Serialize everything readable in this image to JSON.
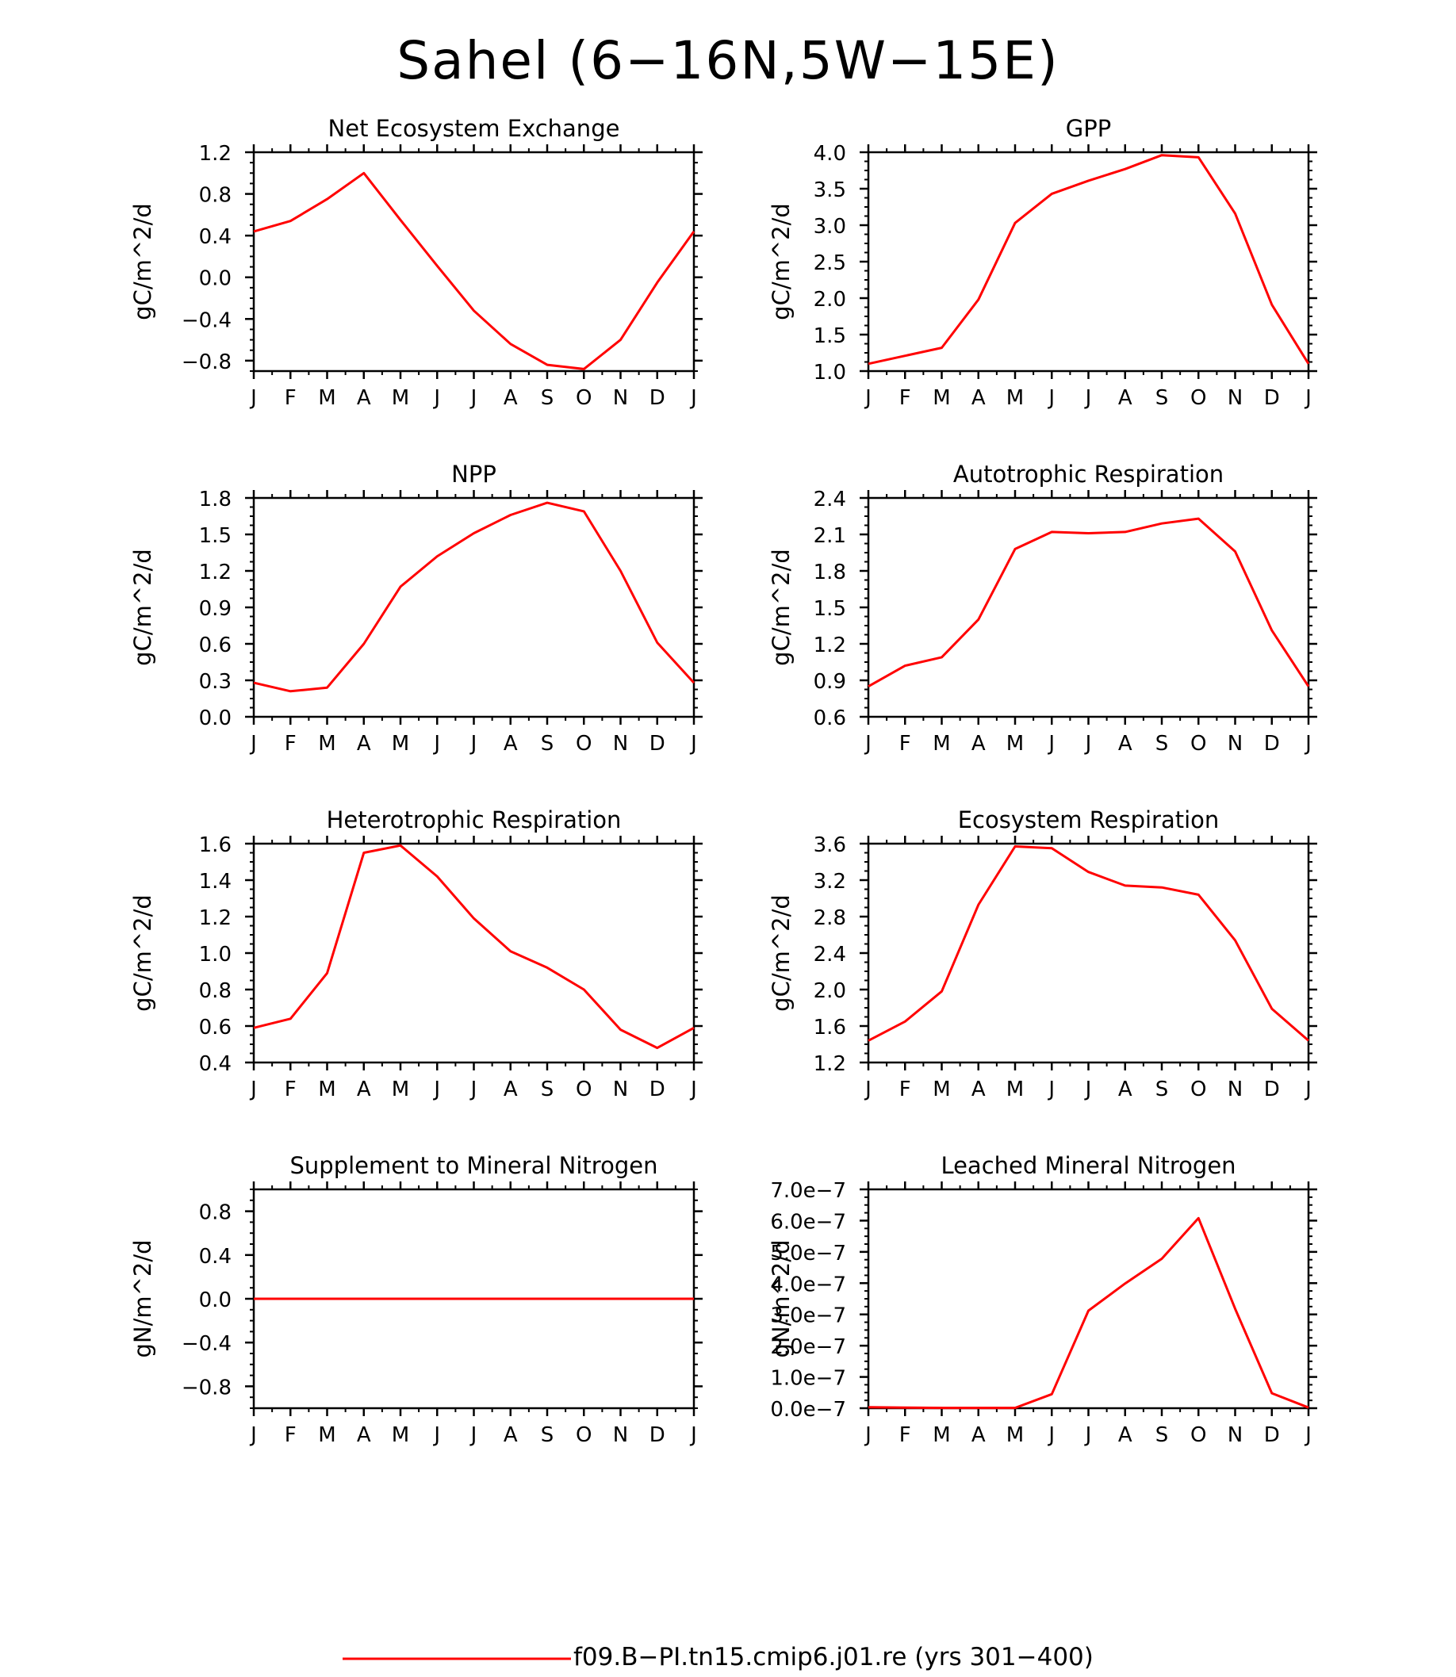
{
  "figure": {
    "title": "Sahel (6−16N,5W−15E)",
    "legend_label": "f09.B−PI.tn15.cmip6.j01.re (yrs 301−400)",
    "line_color": "#ff0000"
  },
  "chart_data": [
    {
      "type": "line",
      "title": "Net Ecosystem Exchange",
      "ylabel": "gC/m^2/d",
      "categories": [
        "J",
        "F",
        "M",
        "A",
        "M",
        "J",
        "J",
        "A",
        "S",
        "O",
        "N",
        "D",
        "J"
      ],
      "ylim": [
        -0.9,
        1.2
      ],
      "yticks": [
        1.2,
        0.8,
        0.4,
        0.0,
        -0.4,
        -0.8
      ],
      "ytick_labels": [
        "1.2",
        "0.8",
        "0.4",
        "0.0",
        "−0.4",
        "−0.8"
      ],
      "values": [
        0.44,
        0.54,
        0.75,
        1.0,
        0.55,
        0.11,
        -0.32,
        -0.64,
        -0.84,
        -0.88,
        -0.6,
        -0.05,
        0.44
      ]
    },
    {
      "type": "line",
      "title": "GPP",
      "ylabel": "gC/m^2/d",
      "categories": [
        "J",
        "F",
        "M",
        "A",
        "M",
        "J",
        "J",
        "A",
        "S",
        "O",
        "N",
        "D",
        "J"
      ],
      "ylim": [
        1.0,
        4.0
      ],
      "yticks": [
        4.0,
        3.5,
        3.0,
        2.5,
        2.0,
        1.5,
        1.0
      ],
      "ytick_labels": [
        "4.0",
        "3.5",
        "3.0",
        "2.5",
        "2.0",
        "1.5",
        "1.0"
      ],
      "values": [
        1.1,
        1.21,
        1.32,
        1.98,
        3.03,
        3.43,
        3.61,
        3.77,
        3.96,
        3.93,
        3.16,
        1.91,
        1.1
      ]
    },
    {
      "type": "line",
      "title": "NPP",
      "ylabel": "gC/m^2/d",
      "categories": [
        "J",
        "F",
        "M",
        "A",
        "M",
        "J",
        "J",
        "A",
        "S",
        "O",
        "N",
        "D",
        "J"
      ],
      "ylim": [
        0.0,
        1.8
      ],
      "yticks": [
        1.8,
        1.5,
        1.2,
        0.9,
        0.6,
        0.3,
        0.0
      ],
      "ytick_labels": [
        "1.8",
        "1.5",
        "1.2",
        "0.9",
        "0.6",
        "0.3",
        "0.0"
      ],
      "values": [
        0.28,
        0.21,
        0.24,
        0.6,
        1.07,
        1.32,
        1.51,
        1.66,
        1.76,
        1.69,
        1.2,
        0.61,
        0.28
      ]
    },
    {
      "type": "line",
      "title": "Autotrophic Respiration",
      "ylabel": "gC/m^2/d",
      "categories": [
        "J",
        "F",
        "M",
        "A",
        "M",
        "J",
        "J",
        "A",
        "S",
        "O",
        "N",
        "D",
        "J"
      ],
      "ylim": [
        0.6,
        2.4
      ],
      "yticks": [
        2.4,
        2.1,
        1.8,
        1.5,
        1.2,
        0.9,
        0.6
      ],
      "ytick_labels": [
        "2.4",
        "2.1",
        "1.8",
        "1.5",
        "1.2",
        "0.9",
        "0.6"
      ],
      "values": [
        0.85,
        1.02,
        1.09,
        1.4,
        1.98,
        2.12,
        2.11,
        2.12,
        2.19,
        2.23,
        1.96,
        1.31,
        0.85
      ]
    },
    {
      "type": "line",
      "title": "Heterotrophic Respiration",
      "ylabel": "gC/m^2/d",
      "categories": [
        "J",
        "F",
        "M",
        "A",
        "M",
        "J",
        "J",
        "A",
        "S",
        "O",
        "N",
        "D",
        "J"
      ],
      "ylim": [
        0.4,
        1.6
      ],
      "yticks": [
        1.6,
        1.4,
        1.2,
        1.0,
        0.8,
        0.6,
        0.4
      ],
      "ytick_labels": [
        "1.6",
        "1.4",
        "1.2",
        "1.0",
        "0.8",
        "0.6",
        "0.4"
      ],
      "values": [
        0.59,
        0.64,
        0.89,
        1.55,
        1.59,
        1.42,
        1.19,
        1.01,
        0.92,
        0.8,
        0.58,
        0.48,
        0.59
      ]
    },
    {
      "type": "line",
      "title": "Ecosystem Respiration",
      "ylabel": "gC/m^2/d",
      "categories": [
        "J",
        "F",
        "M",
        "A",
        "M",
        "J",
        "J",
        "A",
        "S",
        "O",
        "N",
        "D",
        "J"
      ],
      "ylim": [
        1.2,
        3.6
      ],
      "yticks": [
        3.6,
        3.2,
        2.8,
        2.4,
        2.0,
        1.6,
        1.2
      ],
      "ytick_labels": [
        "3.6",
        "3.2",
        "2.8",
        "2.4",
        "2.0",
        "1.6",
        "1.2"
      ],
      "values": [
        1.44,
        1.65,
        1.98,
        2.93,
        3.57,
        3.55,
        3.29,
        3.14,
        3.12,
        3.04,
        2.54,
        1.79,
        1.44
      ]
    },
    {
      "type": "line",
      "title": "Supplement to Mineral Nitrogen",
      "ylabel": "gN/m^2/d",
      "categories": [
        "J",
        "F",
        "M",
        "A",
        "M",
        "J",
        "J",
        "A",
        "S",
        "O",
        "N",
        "D",
        "J"
      ],
      "ylim": [
        -1.0,
        1.0
      ],
      "yticks": [
        0.8,
        0.4,
        0.0,
        -0.4,
        -0.8
      ],
      "ytick_labels": [
        "0.8",
        "0.4",
        "0.0",
        "−0.4",
        "−0.8"
      ],
      "values": [
        0,
        0,
        0,
        0,
        0,
        0,
        0,
        0,
        0,
        0,
        0,
        0,
        0
      ]
    },
    {
      "type": "line",
      "title": "Leached Mineral Nitrogen",
      "ylabel": "gN/m^2/d",
      "categories": [
        "J",
        "F",
        "M",
        "A",
        "M",
        "J",
        "J",
        "A",
        "S",
        "O",
        "N",
        "D",
        "J"
      ],
      "ylim": [
        0.0,
        7e-07
      ],
      "yticks": [
        7e-07,
        6e-07,
        5e-07,
        4e-07,
        3e-07,
        2e-07,
        1e-07,
        0.0
      ],
      "ytick_labels": [
        "7.0e−7",
        "6.0e−7",
        "5.0e−7",
        "4.0e−7",
        "3.0e−7",
        "2.0e−7",
        "1.0e−7",
        "0.0e−7"
      ],
      "values": [
        3e-09,
        2e-09,
        1e-09,
        1e-09,
        1e-09,
        4.5e-08,
        3.12e-07,
        3.99e-07,
        4.78e-07,
        6.08e-07,
        3.18e-07,
        4.8e-08,
        2e-09
      ]
    }
  ]
}
